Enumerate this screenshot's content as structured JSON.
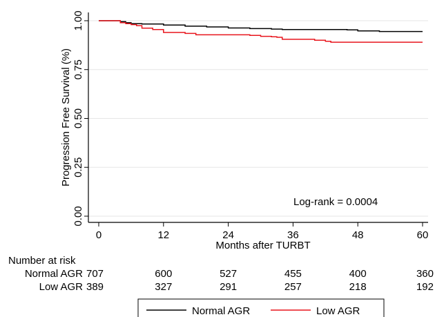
{
  "chart_data": {
    "type": "line",
    "subtype": "kaplan-meier",
    "title": "",
    "xlabel": "Months after TURBT",
    "ylabel": "Progression Free Survival (%)",
    "xlim": [
      0,
      60
    ],
    "ylim": [
      0,
      1
    ],
    "xticks": [
      0,
      12,
      24,
      36,
      48,
      60
    ],
    "yticks": [
      0.0,
      0.25,
      0.5,
      0.75,
      1.0
    ],
    "ytick_labels": [
      "0.00",
      "0.25",
      "0.50",
      "0.75",
      "1.00"
    ],
    "grid": "horizontal",
    "annotation": "Log-rank = 0.0004",
    "legend_position": "bottom",
    "series": [
      {
        "name": "Normal AGR",
        "color": "#000000",
        "x": [
          0,
          3,
          4,
          5,
          6,
          8,
          12,
          16,
          20,
          24,
          28,
          32,
          34,
          36,
          40,
          46,
          48,
          52,
          60
        ],
        "y": [
          1.0,
          1.0,
          0.995,
          0.99,
          0.985,
          0.983,
          0.978,
          0.972,
          0.968,
          0.963,
          0.96,
          0.957,
          0.955,
          0.955,
          0.955,
          0.953,
          0.948,
          0.945,
          0.945
        ]
      },
      {
        "name": "Low AGR",
        "color": "#e8141c",
        "x": [
          0,
          3,
          4,
          5,
          6,
          7,
          8,
          10,
          12,
          16,
          18,
          24,
          28,
          30,
          32,
          33,
          34,
          36,
          38,
          40,
          42,
          43,
          44,
          46,
          48,
          60
        ],
        "y": [
          1.0,
          1.0,
          0.99,
          0.985,
          0.98,
          0.975,
          0.962,
          0.955,
          0.94,
          0.935,
          0.928,
          0.928,
          0.925,
          0.92,
          0.918,
          0.915,
          0.905,
          0.905,
          0.905,
          0.9,
          0.895,
          0.89,
          0.89,
          0.89,
          0.89,
          0.89
        ]
      }
    ],
    "risk_table": {
      "header": "Number at risk",
      "rows": [
        {
          "label": "Normal AGR",
          "values": [
            "707",
            "600",
            "527",
            "455",
            "400",
            "360"
          ]
        },
        {
          "label": "Low AGR",
          "values": [
            "389",
            "327",
            "291",
            "257",
            "218",
            "192"
          ]
        }
      ]
    }
  }
}
